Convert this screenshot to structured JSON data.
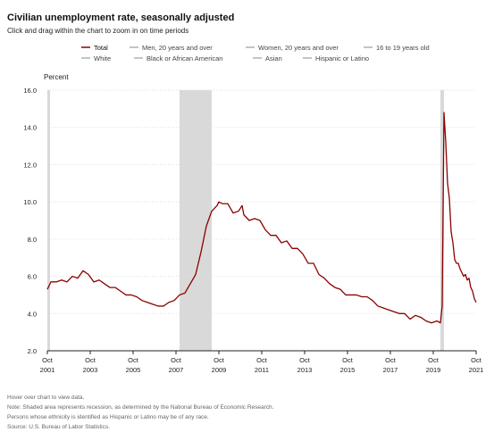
{
  "header": {
    "title": "Civilian unemployment rate, seasonally adjusted",
    "subtitle": "Click and drag within the chart to zoom in on time periods"
  },
  "legend": [
    {
      "label": "Total",
      "color": "#8b0000",
      "active": true
    },
    {
      "label": "Men, 20 years and over",
      "color": "#999999",
      "active": false
    },
    {
      "label": "Women, 20 years and over",
      "color": "#999999",
      "active": false
    },
    {
      "label": "16 to 19 years old",
      "color": "#999999",
      "active": false
    },
    {
      "label": "White",
      "color": "#999999",
      "active": false
    },
    {
      "label": "Black or African American",
      "color": "#999999",
      "active": false
    },
    {
      "label": "Asian",
      "color": "#999999",
      "active": false
    },
    {
      "label": "Hispanic or Latino",
      "color": "#999999",
      "active": false
    }
  ],
  "notes": [
    "Hover over chart to view data.",
    "Note: Shaded area represents recession, as determined by the National Bureau of Economic Research.",
    "Persons whose ethnicity is identified as Hispanic or Latino may be of any race.",
    "Source: U.S. Bureau of Labor Statistics."
  ],
  "chart_data": {
    "type": "line",
    "title": "Civilian unemployment rate, seasonally adjusted",
    "ylabel": "Percent",
    "xlabel": "",
    "ylim": [
      2.0,
      16.0
    ],
    "yticks": [
      "16.0",
      "14.0",
      "12.0",
      "10.0",
      "8.0",
      "6.0",
      "4.0",
      "2.0"
    ],
    "xlim": [
      "2001-10",
      "2021-10"
    ],
    "xticks": [
      {
        "month": "Oct",
        "year": "2001"
      },
      {
        "month": "Oct",
        "year": "2003"
      },
      {
        "month": "Oct",
        "year": "2005"
      },
      {
        "month": "Oct",
        "year": "2007"
      },
      {
        "month": "Oct",
        "year": "2009"
      },
      {
        "month": "Oct",
        "year": "2011"
      },
      {
        "month": "Oct",
        "year": "2013"
      },
      {
        "month": "Oct",
        "year": "2015"
      },
      {
        "month": "Oct",
        "year": "2017"
      },
      {
        "month": "Oct",
        "year": "2019"
      },
      {
        "month": "Oct",
        "year": "2021"
      }
    ],
    "grid": true,
    "line_color": "#8b0000",
    "recession_color": "#d9d9d9",
    "recessions": [
      [
        "2001-10",
        "2001-11"
      ],
      [
        "2007-12",
        "2009-06"
      ],
      [
        "2020-02",
        "2020-04"
      ]
    ],
    "series": [
      {
        "name": "Total",
        "points": [
          [
            "2001-10",
            5.3
          ],
          [
            "2001-12",
            5.7
          ],
          [
            "2002-03",
            5.7
          ],
          [
            "2002-06",
            5.8
          ],
          [
            "2002-09",
            5.7
          ],
          [
            "2002-12",
            6.0
          ],
          [
            "2003-03",
            5.9
          ],
          [
            "2003-06",
            6.3
          ],
          [
            "2003-09",
            6.1
          ],
          [
            "2003-12",
            5.7
          ],
          [
            "2004-03",
            5.8
          ],
          [
            "2004-06",
            5.6
          ],
          [
            "2004-09",
            5.4
          ],
          [
            "2004-12",
            5.4
          ],
          [
            "2005-03",
            5.2
          ],
          [
            "2005-06",
            5.0
          ],
          [
            "2005-09",
            5.0
          ],
          [
            "2005-12",
            4.9
          ],
          [
            "2006-03",
            4.7
          ],
          [
            "2006-06",
            4.6
          ],
          [
            "2006-09",
            4.5
          ],
          [
            "2006-12",
            4.4
          ],
          [
            "2007-03",
            4.4
          ],
          [
            "2007-06",
            4.6
          ],
          [
            "2007-09",
            4.7
          ],
          [
            "2007-12",
            5.0
          ],
          [
            "2008-03",
            5.1
          ],
          [
            "2008-06",
            5.6
          ],
          [
            "2008-09",
            6.1
          ],
          [
            "2008-12",
            7.3
          ],
          [
            "2009-03",
            8.7
          ],
          [
            "2009-06",
            9.5
          ],
          [
            "2009-09",
            9.8
          ],
          [
            "2009-10",
            10.0
          ],
          [
            "2009-12",
            9.9
          ],
          [
            "2010-03",
            9.9
          ],
          [
            "2010-06",
            9.4
          ],
          [
            "2010-09",
            9.5
          ],
          [
            "2010-11",
            9.8
          ],
          [
            "2010-12",
            9.3
          ],
          [
            "2011-03",
            9.0
          ],
          [
            "2011-06",
            9.1
          ],
          [
            "2011-09",
            9.0
          ],
          [
            "2011-12",
            8.5
          ],
          [
            "2012-03",
            8.2
          ],
          [
            "2012-06",
            8.2
          ],
          [
            "2012-09",
            7.8
          ],
          [
            "2012-12",
            7.9
          ],
          [
            "2013-03",
            7.5
          ],
          [
            "2013-06",
            7.5
          ],
          [
            "2013-09",
            7.2
          ],
          [
            "2013-12",
            6.7
          ],
          [
            "2014-03",
            6.7
          ],
          [
            "2014-06",
            6.1
          ],
          [
            "2014-09",
            5.9
          ],
          [
            "2014-12",
            5.6
          ],
          [
            "2015-03",
            5.4
          ],
          [
            "2015-06",
            5.3
          ],
          [
            "2015-09",
            5.0
          ],
          [
            "2015-12",
            5.0
          ],
          [
            "2016-03",
            5.0
          ],
          [
            "2016-06",
            4.9
          ],
          [
            "2016-09",
            4.9
          ],
          [
            "2016-12",
            4.7
          ],
          [
            "2017-03",
            4.4
          ],
          [
            "2017-06",
            4.3
          ],
          [
            "2017-09",
            4.2
          ],
          [
            "2017-12",
            4.1
          ],
          [
            "2018-03",
            4.0
          ],
          [
            "2018-06",
            4.0
          ],
          [
            "2018-09",
            3.7
          ],
          [
            "2018-12",
            3.9
          ],
          [
            "2019-03",
            3.8
          ],
          [
            "2019-06",
            3.6
          ],
          [
            "2019-09",
            3.5
          ],
          [
            "2019-12",
            3.6
          ],
          [
            "2020-02",
            3.5
          ],
          [
            "2020-03",
            4.4
          ],
          [
            "2020-04",
            14.8
          ],
          [
            "2020-05",
            13.2
          ],
          [
            "2020-06",
            11.0
          ],
          [
            "2020-07",
            10.2
          ],
          [
            "2020-08",
            8.4
          ],
          [
            "2020-09",
            7.8
          ],
          [
            "2020-10",
            6.9
          ],
          [
            "2020-11",
            6.7
          ],
          [
            "2020-12",
            6.7
          ],
          [
            "2021-01",
            6.4
          ],
          [
            "2021-02",
            6.2
          ],
          [
            "2021-03",
            6.0
          ],
          [
            "2021-04",
            6.1
          ],
          [
            "2021-05",
            5.8
          ],
          [
            "2021-06",
            5.9
          ],
          [
            "2021-07",
            5.4
          ],
          [
            "2021-08",
            5.2
          ],
          [
            "2021-09",
            4.8
          ],
          [
            "2021-10",
            4.6
          ]
        ]
      }
    ]
  }
}
